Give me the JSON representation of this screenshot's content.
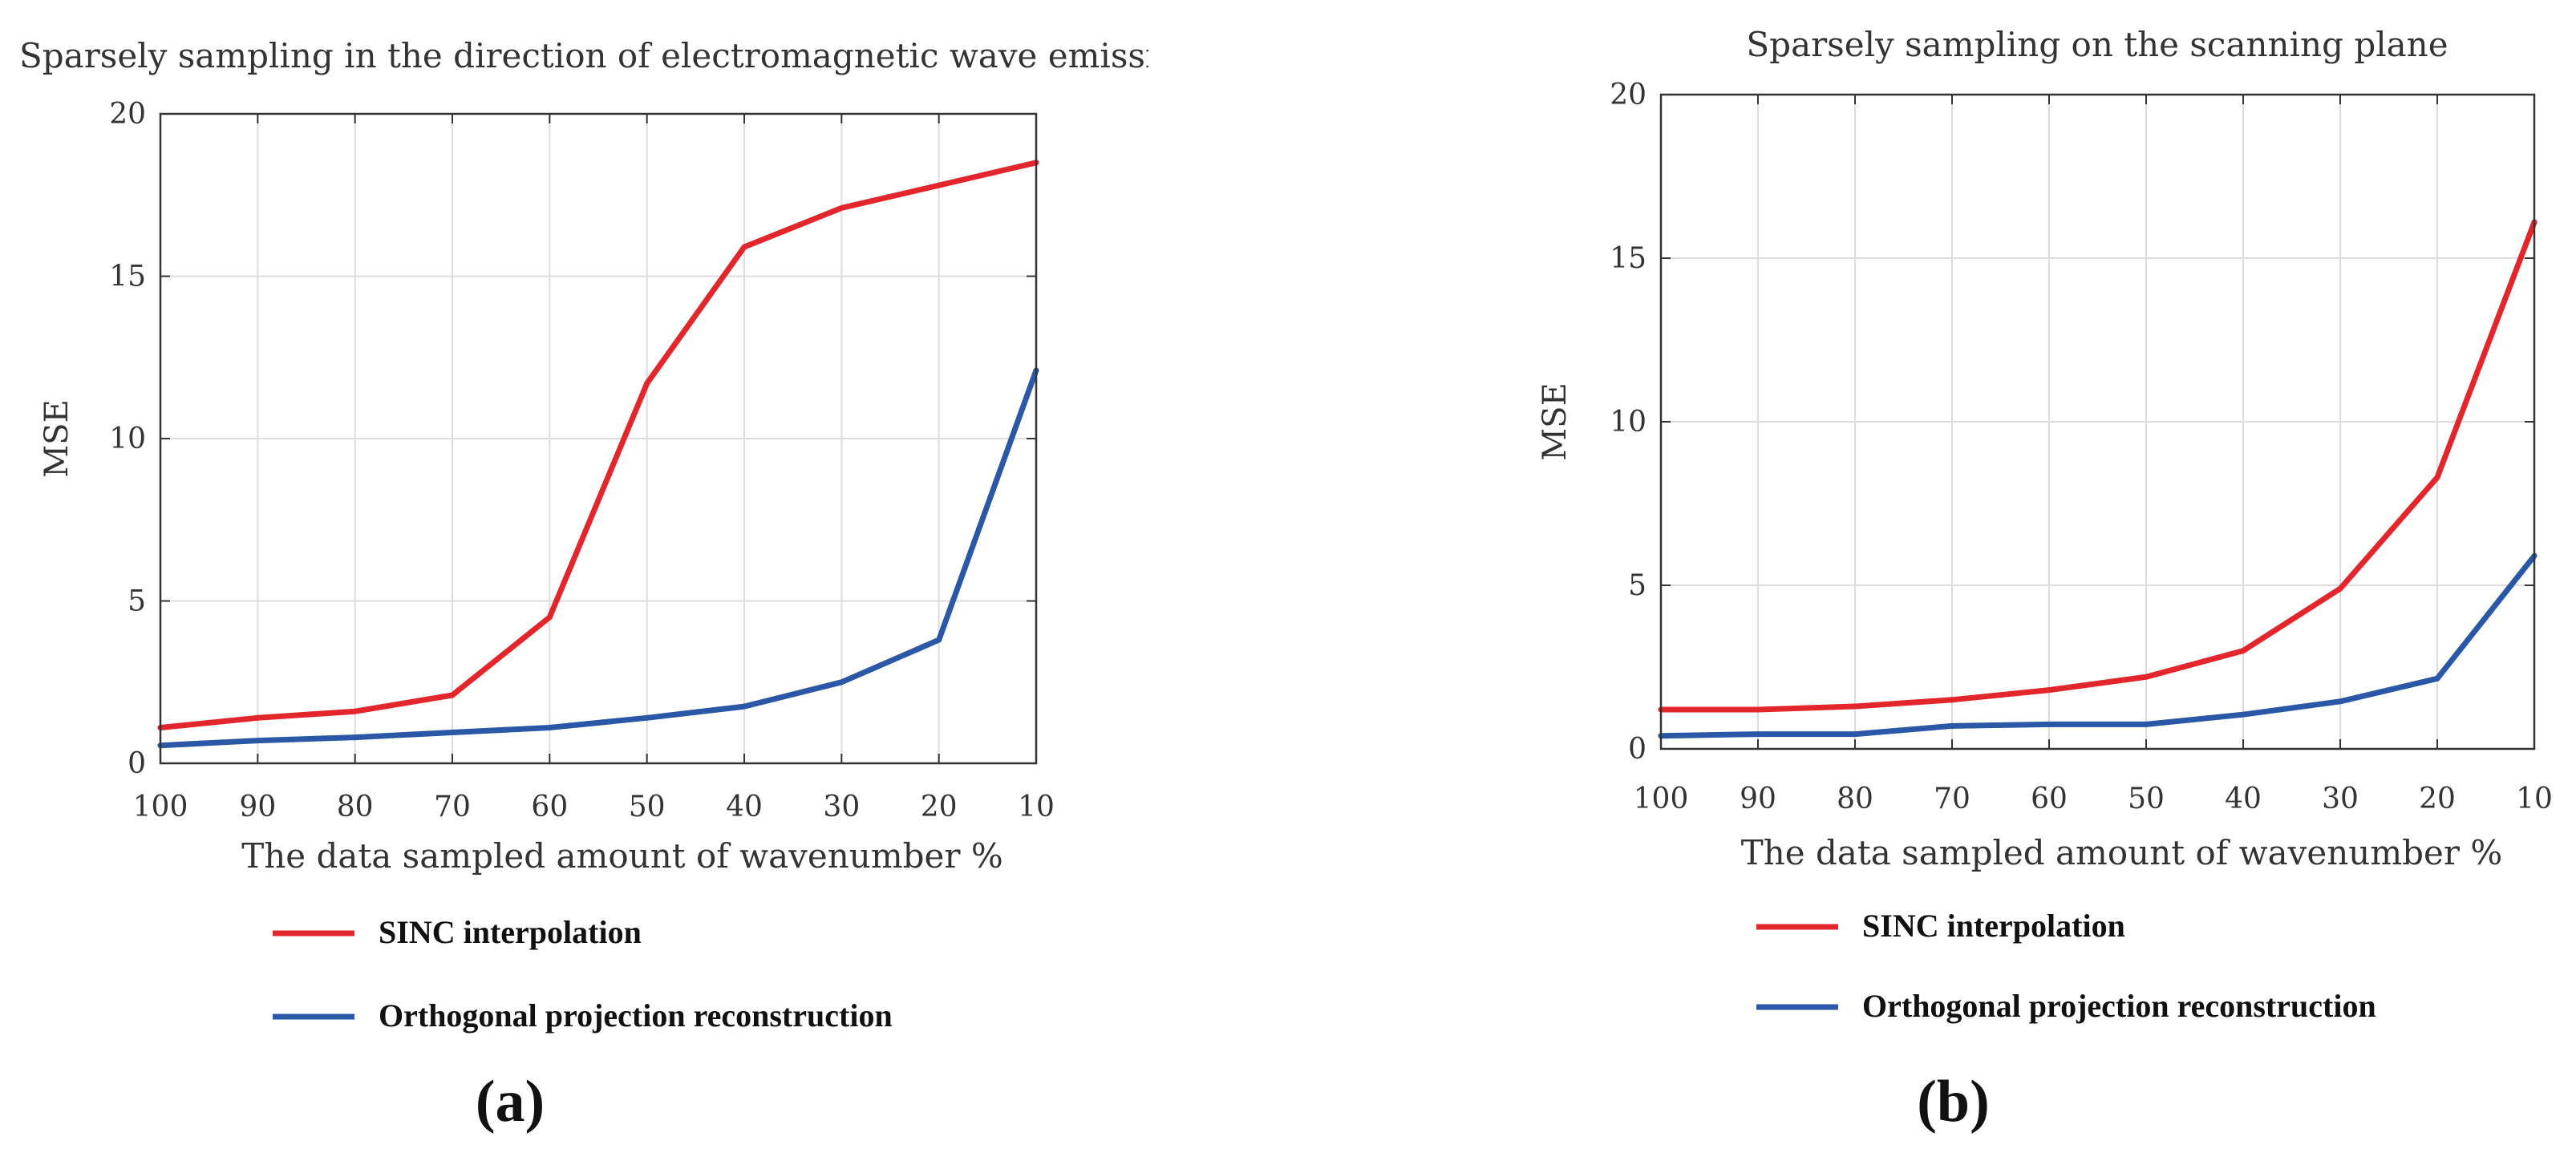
{
  "chart_data": [
    {
      "type": "line",
      "panel_label": "(a)",
      "title": "Sparsely sampling in the direction of electromagnetic wave emission",
      "xlabel": "The data sampled amount of wavenumber %",
      "ylabel": "MSE",
      "x": [
        100,
        90,
        80,
        70,
        60,
        50,
        40,
        30,
        20,
        10
      ],
      "x_reversed": true,
      "xlim": [
        100,
        10
      ],
      "ylim": [
        0,
        20
      ],
      "yticks": [
        0,
        5,
        10,
        15,
        20
      ],
      "grid": true,
      "legend": "bottom",
      "series": [
        {
          "name": "SINC interpolation",
          "color": "#e3262c",
          "values": [
            1.1,
            1.4,
            1.6,
            2.1,
            4.5,
            11.7,
            15.9,
            17.1,
            17.8,
            18.5
          ]
        },
        {
          "name": "Orthogonal projection reconstruction",
          "color": "#2a58a6",
          "values": [
            0.55,
            0.7,
            0.8,
            0.95,
            1.1,
            1.4,
            1.75,
            2.5,
            3.8,
            12.1
          ]
        }
      ]
    },
    {
      "type": "line",
      "panel_label": "(b)",
      "title": "Sparsely sampling on the scanning plane",
      "xlabel": "The data sampled amount of wavenumber %",
      "ylabel": "MSE",
      "x": [
        100,
        90,
        80,
        70,
        60,
        50,
        40,
        30,
        20,
        10
      ],
      "x_reversed": true,
      "xlim": [
        100,
        10
      ],
      "ylim": [
        0,
        20
      ],
      "yticks": [
        0,
        5,
        10,
        15,
        20
      ],
      "grid": true,
      "legend": "bottom",
      "series": [
        {
          "name": "SINC interpolation",
          "color": "#e3262c",
          "values": [
            1.2,
            1.2,
            1.3,
            1.5,
            1.8,
            2.2,
            3.0,
            4.9,
            8.3,
            16.1
          ]
        },
        {
          "name": "Orthogonal projection reconstruction",
          "color": "#2a58a6",
          "values": [
            0.4,
            0.45,
            0.45,
            0.7,
            0.75,
            0.75,
            1.05,
            1.45,
            2.15,
            5.9
          ]
        }
      ]
    }
  ]
}
